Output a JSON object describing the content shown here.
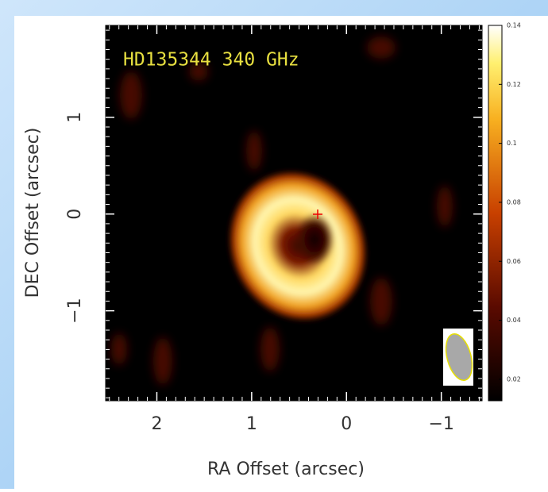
{
  "chart_data": {
    "type": "image",
    "title": "HD135344 340 GHz",
    "x_label": "RA Offset (arcsec)",
    "y_label": "DEC Offset (arcsec)",
    "xlim": [
      2.54,
      -1.43
    ],
    "ylim": [
      -1.93,
      1.95
    ],
    "xticks": [
      2,
      1,
      0,
      {
        "value": -1,
        "label": "−1"
      }
    ],
    "yticks": [
      {
        "value": -1,
        "label": "−1"
      },
      0,
      1
    ],
    "colorbar": {
      "lim": [
        0.0127,
        0.14
      ],
      "ticks": [
        0.02,
        0.04,
        0.06,
        0.08,
        0.1,
        0.12,
        0.14
      ]
    }
  }
}
